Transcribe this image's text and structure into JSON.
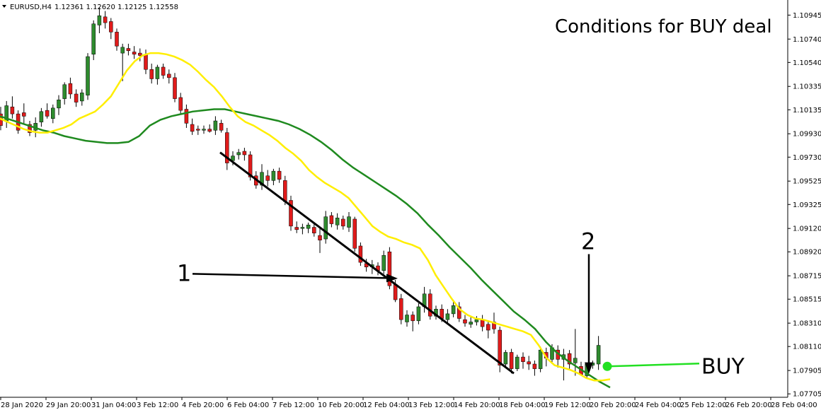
{
  "window": {
    "symbol_timeframe": "EURUSD,H4",
    "ohlc": "1.12361 1.12620 1.12125 1.12558"
  },
  "annotations": {
    "title": "Conditions for BUY deal",
    "label_1": "1",
    "label_2": "2",
    "buy_label": "BUY"
  },
  "colors": {
    "bull": "#2e8b2e",
    "bear": "#e01b1b",
    "fast_ma": "#ffee00",
    "slow_ma": "#1f8a1f",
    "buy_marker": "#22e022",
    "annotation": "#000000"
  },
  "chart_data": {
    "type": "candlestick",
    "symbol": "EURUSD",
    "timeframe": "H4",
    "ylim": [
      1.077,
      1.1105
    ],
    "y_ticks": [
      "1.10945",
      "1.10740",
      "1.10540",
      "1.10335",
      "1.10135",
      "1.09930",
      "1.09730",
      "1.09525",
      "1.09325",
      "1.09120",
      "1.08920",
      "1.08715",
      "1.08515",
      "1.08310",
      "1.08110",
      "1.07905",
      "1.07705"
    ],
    "x_ticks": [
      "28 Jan 2020",
      "29 Jan 20:00",
      "31 Jan 04:00",
      "3 Feb 12:00",
      "4 Feb 20:00",
      "6 Feb 04:00",
      "7 Feb 12:00",
      "10 Feb 20:00",
      "12 Feb 04:00",
      "13 Feb 12:00",
      "14 Feb 20:00",
      "18 Feb 04:00",
      "19 Feb 12:00",
      "20 Feb 20:00",
      "24 Feb 04:00",
      "25 Feb 12:00",
      "26 Feb 20:00",
      "28 Feb 04:00"
    ],
    "candles": [
      [
        1.101,
        1.1016,
        1.0996,
        1.1
      ],
      [
        1.1004,
        1.1021,
        1.0998,
        1.1017
      ],
      [
        1.1016,
        1.1025,
        1.1006,
        1.101
      ],
      [
        1.101,
        1.1013,
        1.0993,
        1.0996
      ],
      [
        1.1011,
        1.1019,
        1.1002,
        1.1008
      ],
      [
        1.1001,
        1.1004,
        1.0991,
        1.0994
      ],
      [
        1.0996,
        1.1007,
        1.099,
        1.1002
      ],
      [
        1.1003,
        1.1015,
        1.0999,
        1.1012
      ],
      [
        1.1013,
        1.1019,
        1.1006,
        1.1008
      ],
      [
        1.1006,
        1.1018,
        1.1002,
        1.1015
      ],
      [
        1.1015,
        1.1026,
        1.1009,
        1.1022
      ],
      [
        1.1023,
        1.1037,
        1.1018,
        1.1035
      ],
      [
        1.1036,
        1.1041,
        1.1023,
        1.1027
      ],
      [
        1.1027,
        1.1031,
        1.1016,
        1.102
      ],
      [
        1.1021,
        1.1031,
        1.1017,
        1.1028
      ],
      [
        1.1026,
        1.1062,
        1.1022,
        1.1059
      ],
      [
        1.1061,
        1.109,
        1.1056,
        1.1087
      ],
      [
        1.1086,
        1.1101,
        1.1079,
        1.1094
      ],
      [
        1.1093,
        1.1098,
        1.1083,
        1.1088
      ],
      [
        1.1089,
        1.1092,
        1.1074,
        1.108
      ],
      [
        1.108,
        1.1083,
        1.1064,
        1.1068
      ],
      [
        1.1062,
        1.107,
        1.1038,
        1.1067
      ],
      [
        1.1066,
        1.107,
        1.106,
        1.1064
      ],
      [
        1.1063,
        1.1068,
        1.1057,
        1.1061
      ],
      [
        1.1062,
        1.1066,
        1.1055,
        1.106
      ],
      [
        1.1061,
        1.1065,
        1.1044,
        1.1048
      ],
      [
        1.1048,
        1.1053,
        1.1036,
        1.104
      ],
      [
        1.104,
        1.1052,
        1.1035,
        1.105
      ],
      [
        1.105,
        1.1053,
        1.104,
        1.1043
      ],
      [
        1.1044,
        1.1048,
        1.1036,
        1.1041
      ],
      [
        1.1041,
        1.1045,
        1.102,
        1.1023
      ],
      [
        1.1024,
        1.1028,
        1.101,
        1.1013
      ],
      [
        1.1014,
        1.1018,
        1.0998,
        1.1002
      ],
      [
        1.1001,
        1.1006,
        1.0992,
        1.0995
      ],
      [
        1.0997,
        1.1,
        1.0992,
        1.0996
      ],
      [
        1.0996,
        1.1,
        1.0993,
        1.0997
      ],
      [
        1.0997,
        1.1001,
        1.0994,
        1.0995
      ],
      [
        1.0996,
        1.1008,
        1.0992,
        1.1004
      ],
      [
        1.1002,
        1.1005,
        1.0994,
        1.0996
      ],
      [
        1.0994,
        1.0998,
        1.0962,
        1.0968
      ],
      [
        1.097,
        1.0978,
        1.0966,
        1.0974
      ],
      [
        1.0975,
        1.098,
        1.0971,
        1.0977
      ],
      [
        1.0978,
        1.0981,
        1.097,
        1.0975
      ],
      [
        1.0975,
        1.0978,
        1.0953,
        1.0956
      ],
      [
        1.0957,
        1.0961,
        1.0946,
        1.0949
      ],
      [
        1.0949,
        1.0967,
        1.0945,
        1.096
      ],
      [
        1.0957,
        1.0962,
        1.0948,
        1.0953
      ],
      [
        1.0953,
        1.0963,
        1.0949,
        1.0961
      ],
      [
        1.0961,
        1.0964,
        1.0951,
        1.0954
      ],
      [
        1.0953,
        1.0957,
        1.0932,
        1.0935
      ],
      [
        1.0936,
        1.094,
        1.091,
        1.0914
      ],
      [
        1.0913,
        1.0918,
        1.0908,
        1.0911
      ],
      [
        1.0912,
        1.0916,
        1.0907,
        1.0913
      ],
      [
        1.0912,
        1.0917,
        1.0908,
        1.0915
      ],
      [
        1.0913,
        1.0916,
        1.0905,
        1.0908
      ],
      [
        1.0906,
        1.0912,
        1.0891,
        1.0902
      ],
      [
        1.0903,
        1.0927,
        1.0899,
        1.0922
      ],
      [
        1.0923,
        1.0926,
        1.0913,
        1.0916
      ],
      [
        1.0915,
        1.0925,
        1.0911,
        1.0921
      ],
      [
        1.092,
        1.0923,
        1.0911,
        1.0914
      ],
      [
        1.0913,
        1.0926,
        1.0909,
        1.0922
      ],
      [
        1.092,
        1.0922,
        1.0892,
        1.0895
      ],
      [
        1.0897,
        1.09,
        1.088,
        1.0883
      ],
      [
        1.0882,
        1.0886,
        1.0875,
        1.0879
      ],
      [
        1.0879,
        1.0885,
        1.0873,
        1.0881
      ],
      [
        1.088,
        1.0883,
        1.0872,
        1.0876
      ],
      [
        1.0876,
        1.0893,
        1.0873,
        1.0889
      ],
      [
        1.0892,
        1.0896,
        1.086,
        1.0863
      ],
      [
        1.0864,
        1.0868,
        1.0849,
        1.0851
      ],
      [
        1.0852,
        1.0856,
        1.083,
        1.0834
      ],
      [
        1.0832,
        1.0842,
        1.0828,
        1.0838
      ],
      [
        1.0838,
        1.0841,
        1.0824,
        1.0833
      ],
      [
        1.0833,
        1.0848,
        1.083,
        1.0845
      ],
      [
        1.0845,
        1.0862,
        1.084,
        1.0856
      ],
      [
        1.0856,
        1.086,
        1.0834,
        1.0837
      ],
      [
        1.0837,
        1.0846,
        1.0834,
        1.0843
      ],
      [
        1.0843,
        1.0847,
        1.0832,
        1.0835
      ],
      [
        1.0834,
        1.0843,
        1.083,
        1.0839
      ],
      [
        1.0839,
        1.085,
        1.0836,
        1.0846
      ],
      [
        1.0845,
        1.0849,
        1.0832,
        1.0835
      ],
      [
        1.0834,
        1.0838,
        1.0828,
        1.0831
      ],
      [
        1.083,
        1.0836,
        1.0827,
        1.0832
      ],
      [
        1.0832,
        1.0837,
        1.0829,
        1.0834
      ],
      [
        1.0834,
        1.0838,
        1.0824,
        1.0828
      ],
      [
        1.083,
        1.0832,
        1.0818,
        1.0825
      ],
      [
        1.0832,
        1.084,
        1.0822,
        1.0826
      ],
      [
        1.0825,
        1.0828,
        1.0789,
        1.0795
      ],
      [
        1.0796,
        1.0808,
        1.0793,
        1.0806
      ],
      [
        1.0806,
        1.0809,
        1.0788,
        1.0792
      ],
      [
        1.0792,
        1.0804,
        1.079,
        1.0802
      ],
      [
        1.0802,
        1.0806,
        1.0792,
        1.0798
      ],
      [
        1.0798,
        1.0803,
        1.0791,
        1.0796
      ],
      [
        1.0796,
        1.0799,
        1.0786,
        1.0792
      ],
      [
        1.0792,
        1.0811,
        1.0789,
        1.0808
      ],
      [
        1.0806,
        1.081,
        1.0794,
        1.0801
      ],
      [
        1.08,
        1.0813,
        1.0796,
        1.081
      ],
      [
        1.0808,
        1.0812,
        1.0793,
        1.08
      ],
      [
        1.08,
        1.0809,
        1.0782,
        1.0804
      ],
      [
        1.0805,
        1.0808,
        1.0792,
        1.0796
      ],
      [
        1.0797,
        1.0826,
        1.0786,
        1.0801
      ],
      [
        1.0794,
        1.0798,
        1.0786,
        1.0787
      ],
      [
        1.0786,
        1.0797,
        1.0784,
        1.0796
      ],
      [
        1.0795,
        1.0799,
        1.0792,
        1.0797
      ],
      [
        1.0796,
        1.082,
        1.0791,
        1.0812
      ]
    ],
    "fast_ma": [
      1.1006,
      1.1003,
      1.1,
      1.0997,
      1.0995,
      1.0994,
      1.0994,
      1.0996,
      1.0998,
      1.1001,
      1.1006,
      1.1009,
      1.1012,
      1.1018,
      1.1025,
      1.1036,
      1.1047,
      1.1055,
      1.106,
      1.1062,
      1.1062,
      1.1061,
      1.1059,
      1.1056,
      1.1052,
      1.1046,
      1.1039,
      1.1033,
      1.1025,
      1.1016,
      1.1008,
      1.1003,
      1.1,
      1.0996,
      1.0992,
      1.0987,
      1.0981,
      1.0976,
      1.097,
      1.0962,
      1.0956,
      1.0951,
      1.0947,
      1.0943,
      1.0938,
      1.093,
      1.0922,
      1.0914,
      1.0909,
      1.0905,
      1.0903,
      1.09,
      1.0898,
      1.0895,
      1.0885,
      1.0872,
      1.0862,
      1.0852,
      1.0843,
      1.0838,
      1.0835,
      1.0834,
      1.0832,
      1.083,
      1.0828,
      1.0826,
      1.0824,
      1.0821,
      1.0812,
      1.0801,
      1.0795,
      1.0793,
      1.0791,
      1.0788,
      1.0784,
      1.0782,
      1.0782,
      1.0783
    ],
    "slow_ma": [
      1.1008,
      1.1005,
      1.1002,
      1.0999,
      1.0996,
      1.0994,
      1.0991,
      1.0989,
      1.0987,
      1.0986,
      1.0985,
      1.0985,
      1.0986,
      1.0991,
      1.1,
      1.1005,
      1.1008,
      1.101,
      1.1012,
      1.1013,
      1.1014,
      1.1014,
      1.1012,
      1.101,
      1.1008,
      1.1006,
      1.1004,
      1.1001,
      1.0997,
      1.0992,
      1.0986,
      1.0979,
      1.0971,
      1.0964,
      1.0958,
      1.0952,
      1.0946,
      1.094,
      1.0933,
      1.0925,
      1.0915,
      1.0906,
      1.0896,
      1.0887,
      1.0878,
      1.0868,
      1.0859,
      1.085,
      1.0841,
      1.0834,
      1.0826,
      1.0815,
      1.0806,
      1.0799,
      1.0793,
      1.0787,
      1.0781,
      1.0776
    ],
    "trendline": [
      1.0977,
      1.0788
    ],
    "arrow_1": {
      "label": "1",
      "level": 1.0872
    },
    "arrow_2": {
      "label": "2",
      "level_from": 1.089,
      "level_to": 1.0789
    },
    "buy_signal": {
      "label": "BUY",
      "price": 1.0794
    }
  }
}
